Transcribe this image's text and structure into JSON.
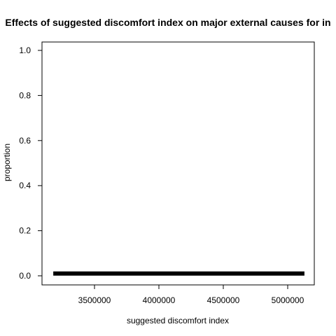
{
  "chart_data": {
    "type": "line",
    "title": "Effects of suggested discomfort index on major external causes for in",
    "xlabel": "suggested discomfort index",
    "ylabel": "proportion",
    "xlim": [
      3180000,
      5130000
    ],
    "ylim": [
      0,
      1.0
    ],
    "x_ticks": [
      3500000,
      4000000,
      4500000,
      5000000
    ],
    "x_tick_labels": [
      "3500000",
      "4000000",
      "4500000",
      "5000000"
    ],
    "y_ticks": [
      0.0,
      0.2,
      0.4,
      0.6,
      0.8,
      1.0
    ],
    "y_tick_labels": [
      "0.0",
      "0.2",
      "0.4",
      "0.6",
      "0.8",
      "1.0"
    ],
    "grid": false,
    "series": [
      {
        "x": [
          3180000,
          5130000
        ],
        "y": [
          0.01,
          0.01
        ],
        "color": "#000000"
      }
    ]
  }
}
